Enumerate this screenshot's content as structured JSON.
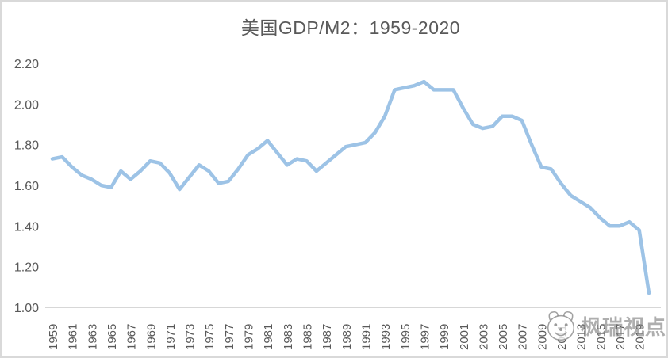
{
  "title": "美国GDP/M2：1959-2020",
  "watermark": {
    "text": "枫瑞视点",
    "logo": "animal-face-logo"
  },
  "colors": {
    "line": "#9DC3E6",
    "title_text": "#595959",
    "axis_text": "#595959",
    "axis_line": "#BFBFBF",
    "border": "#D9D9D9",
    "watermark": "#7D7D7D"
  },
  "y_axis": {
    "tick_labels": [
      "2.20",
      "2.00",
      "1.80",
      "1.60",
      "1.40",
      "1.20",
      "1.00"
    ]
  },
  "x_axis": {
    "tick_labels": [
      "1959",
      "1961",
      "1963",
      "1965",
      "1967",
      "1969",
      "1971",
      "1973",
      "1975",
      "1977",
      "1979",
      "1981",
      "1983",
      "1985",
      "1987",
      "1989",
      "1991",
      "1993",
      "1995",
      "1997",
      "1999",
      "2001",
      "2003",
      "2005",
      "2007",
      "2009",
      "2011",
      "2013",
      "2015",
      "2017",
      "2019"
    ]
  },
  "chart_data": {
    "type": "line",
    "title": "美国GDP/M2：1959-2020",
    "xlabel": "",
    "ylabel": "",
    "x": [
      1959,
      1960,
      1961,
      1962,
      1963,
      1964,
      1965,
      1966,
      1967,
      1968,
      1969,
      1970,
      1971,
      1972,
      1973,
      1974,
      1975,
      1976,
      1977,
      1978,
      1979,
      1980,
      1981,
      1982,
      1983,
      1984,
      1985,
      1986,
      1987,
      1988,
      1989,
      1990,
      1991,
      1992,
      1993,
      1994,
      1995,
      1996,
      1997,
      1998,
      1999,
      2000,
      2001,
      2002,
      2003,
      2004,
      2005,
      2006,
      2007,
      2008,
      2009,
      2010,
      2011,
      2012,
      2013,
      2014,
      2015,
      2016,
      2017,
      2018,
      2019,
      2020
    ],
    "values": [
      1.73,
      1.74,
      1.69,
      1.65,
      1.63,
      1.6,
      1.59,
      1.67,
      1.63,
      1.67,
      1.72,
      1.71,
      1.66,
      1.58,
      1.64,
      1.7,
      1.67,
      1.61,
      1.62,
      1.68,
      1.75,
      1.78,
      1.82,
      1.76,
      1.7,
      1.73,
      1.72,
      1.67,
      1.71,
      1.75,
      1.79,
      1.8,
      1.81,
      1.86,
      1.94,
      2.07,
      2.08,
      2.09,
      2.11,
      2.07,
      2.07,
      2.07,
      1.98,
      1.9,
      1.88,
      1.89,
      1.94,
      1.94,
      1.92,
      1.8,
      1.69,
      1.68,
      1.61,
      1.55,
      1.52,
      1.49,
      1.44,
      1.4,
      1.4,
      1.42,
      1.38,
      1.07
    ],
    "ylim": [
      1.0,
      2.2
    ],
    "y_tick_step": 0.2,
    "xlim": [
      1959,
      2020
    ],
    "grid": false,
    "legend": false
  }
}
